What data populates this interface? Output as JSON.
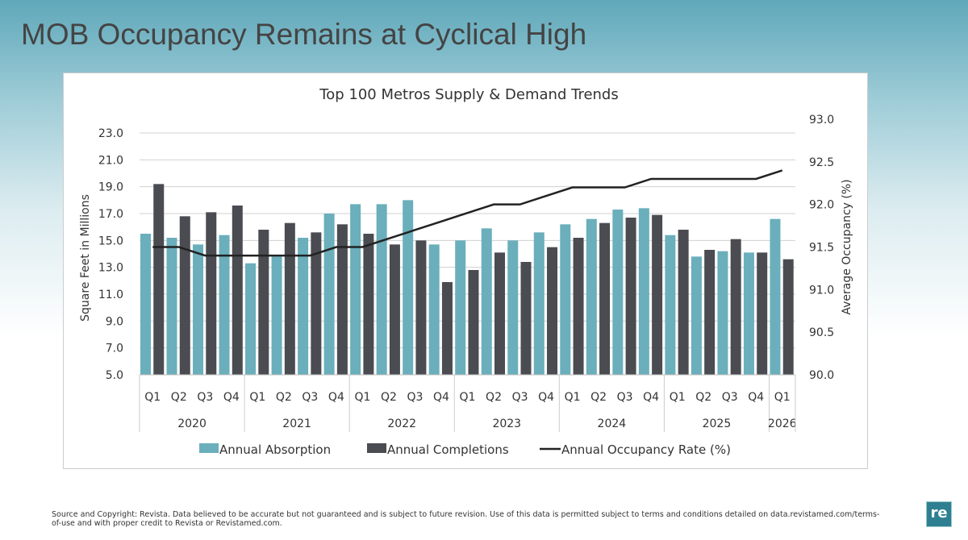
{
  "page": {
    "title": "MOB Occupancy Remains at Cyclical High",
    "footer": "Source and Copyright: Revista. Data believed to be accurate but not guaranteed and is subject to future revision. Use of this data is permitted subject to terms and conditions detailed on data.revistamed.com/terms-of-use and with proper credit to Revista or Revistamed.com.",
    "logo": "re"
  },
  "chart_data": {
    "type": "bar+line",
    "title": "Top 100 Metros Supply & Demand Trends",
    "ylabel": "Square Feet in Millions",
    "y2label": "Average Occupancy (%)",
    "ylim": [
      5,
      23
    ],
    "yticks": [
      "5.0",
      "7.0",
      "9.0",
      "11.0",
      "13.0",
      "15.0",
      "17.0",
      "19.0",
      "21.0",
      "23.0"
    ],
    "y2lim": [
      90,
      93
    ],
    "y2ticks": [
      "90.0",
      "90.5",
      "91.0",
      "91.5",
      "92.0",
      "92.5",
      "93.0"
    ],
    "categories": [
      "Q1",
      "Q2",
      "Q3",
      "Q4",
      "Q1",
      "Q2",
      "Q3",
      "Q4",
      "Q1",
      "Q2",
      "Q3",
      "Q4",
      "Q1",
      "Q2",
      "Q3",
      "Q4",
      "Q1",
      "Q2",
      "Q3",
      "Q4",
      "Q1",
      "Q2",
      "Q3",
      "Q4",
      "Q1"
    ],
    "groups": [
      {
        "label": "2020",
        "count": 4
      },
      {
        "label": "2021",
        "count": 4
      },
      {
        "label": "2022",
        "count": 4
      },
      {
        "label": "2023",
        "count": 4
      },
      {
        "label": "2024",
        "count": 4
      },
      {
        "label": "2025",
        "count": 4
      },
      {
        "label": "2026",
        "count": 1
      }
    ],
    "grid": true,
    "legend": "bottom",
    "series": [
      {
        "name": "Annual Absorption",
        "type": "bar",
        "axis": "left",
        "color": "#6aafbb",
        "values": [
          15.5,
          15.2,
          14.7,
          15.4,
          13.3,
          13.8,
          15.2,
          17.0,
          17.7,
          17.7,
          18.0,
          14.7,
          15.0,
          15.9,
          15.0,
          15.6,
          16.2,
          16.6,
          17.3,
          17.4,
          15.4,
          13.8,
          14.2,
          14.1,
          16.6
        ]
      },
      {
        "name": "Annual Completions",
        "type": "bar",
        "axis": "left",
        "color": "#4b4c52",
        "values": [
          19.2,
          16.8,
          17.1,
          17.6,
          15.8,
          16.3,
          15.6,
          16.2,
          15.5,
          14.7,
          15.0,
          11.9,
          12.8,
          14.1,
          13.4,
          14.5,
          15.2,
          16.3,
          16.7,
          16.9,
          15.8,
          14.3,
          15.1,
          14.1,
          13.6
        ]
      },
      {
        "name": "Annual Occupancy Rate (%)",
        "type": "line",
        "axis": "right",
        "color": "#222222",
        "values": [
          91.5,
          91.5,
          91.4,
          91.4,
          91.4,
          91.4,
          91.4,
          91.5,
          91.5,
          91.6,
          91.7,
          91.8,
          91.9,
          92.0,
          92.0,
          92.1,
          92.2,
          92.2,
          92.2,
          92.3,
          92.3,
          92.3,
          92.3,
          92.3,
          92.4
        ]
      }
    ]
  }
}
